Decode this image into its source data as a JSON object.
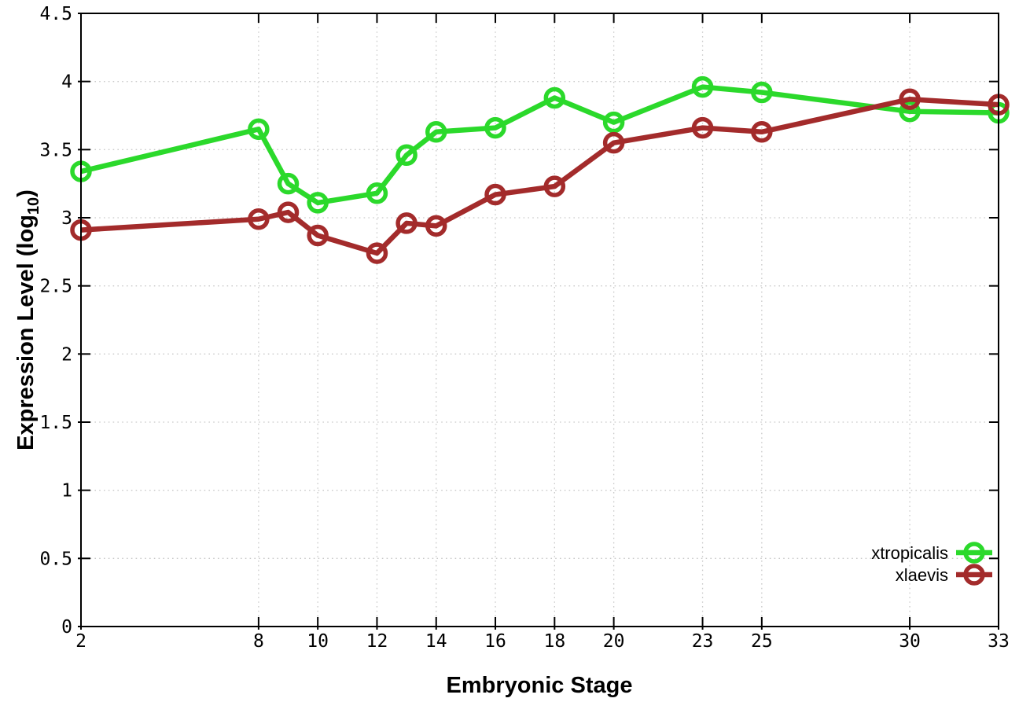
{
  "chart_data": {
    "type": "line",
    "title": "",
    "xlabel": "Embryonic Stage",
    "ylabel": {
      "prefix": "Expression Level (log",
      "sub": "10",
      "suffix": ")"
    },
    "x": [
      2,
      8,
      9,
      10,
      12,
      13,
      14,
      16,
      18,
      20,
      23,
      25,
      30,
      33
    ],
    "series": [
      {
        "name": "xtropicalis",
        "color": "#2bd92b",
        "values": [
          3.34,
          3.65,
          3.25,
          3.11,
          3.18,
          3.46,
          3.63,
          3.66,
          3.88,
          3.7,
          3.96,
          3.92,
          3.78,
          3.77
        ]
      },
      {
        "name": "xlaevis",
        "color": "#a32b2b",
        "values": [
          2.91,
          2.99,
          3.04,
          2.87,
          2.74,
          2.96,
          2.94,
          3.17,
          3.23,
          3.55,
          3.66,
          3.63,
          3.87,
          3.83
        ]
      }
    ],
    "xlim": [
      2,
      33
    ],
    "ylim": [
      0,
      4.5
    ],
    "xticks": [
      2,
      8,
      10,
      12,
      14,
      16,
      18,
      20,
      23,
      25,
      30,
      33
    ],
    "xtick_labels": [
      "2",
      "8",
      "10",
      "12",
      "14",
      "16",
      "18",
      "20",
      "23",
      "25",
      "30",
      "33"
    ],
    "yticks": [
      0,
      0.5,
      1,
      1.5,
      2,
      2.5,
      3,
      3.5,
      4,
      4.5
    ],
    "ytick_labels": [
      "0",
      "0.5",
      "1",
      "1.5",
      "2",
      "2.5",
      "3",
      "3.5",
      "4",
      "4.5"
    ],
    "grid": true,
    "legend_position": "bottom-right",
    "legend_entries": [
      "xtropicalis",
      "xlaevis"
    ],
    "colors": {
      "border": "#000000",
      "grid": "#c9c9c9",
      "text": "#000000",
      "background": "#ffffff"
    }
  }
}
